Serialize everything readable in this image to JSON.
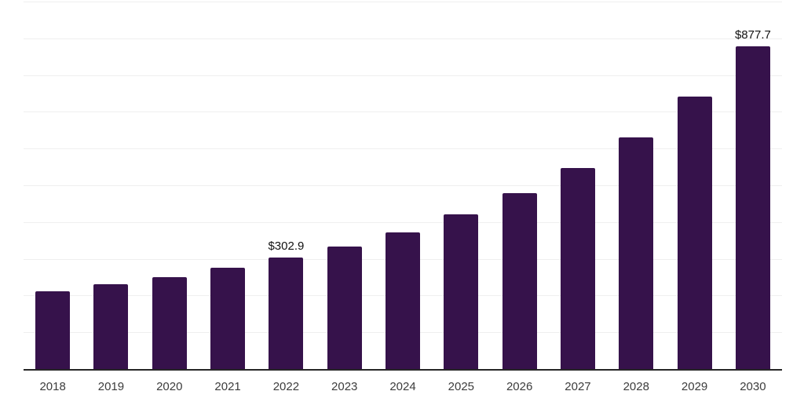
{
  "chart_data": {
    "type": "bar",
    "title": "",
    "xlabel": "",
    "ylabel": "",
    "categories": [
      "2018",
      "2019",
      "2020",
      "2021",
      "2022",
      "2023",
      "2024",
      "2025",
      "2026",
      "2027",
      "2028",
      "2029",
      "2030"
    ],
    "values": [
      212,
      231,
      251,
      275,
      302.9,
      334,
      372,
      420,
      478,
      546,
      631,
      741,
      877.7
    ],
    "value_labels": [
      {
        "category": "2022",
        "text": "$302.9"
      },
      {
        "category": "2030",
        "text": "$877.7"
      }
    ],
    "ylim": [
      0,
      1000
    ],
    "gridline_count": 10,
    "grid": "horizontal",
    "legend": "none",
    "colors": {
      "bar": "#36124B",
      "gridline": "#EFEFEF",
      "axis_line": "#262626",
      "value_label": "#111111",
      "tick_label": "#3C3C3C",
      "background": "#FFFFFF"
    }
  }
}
